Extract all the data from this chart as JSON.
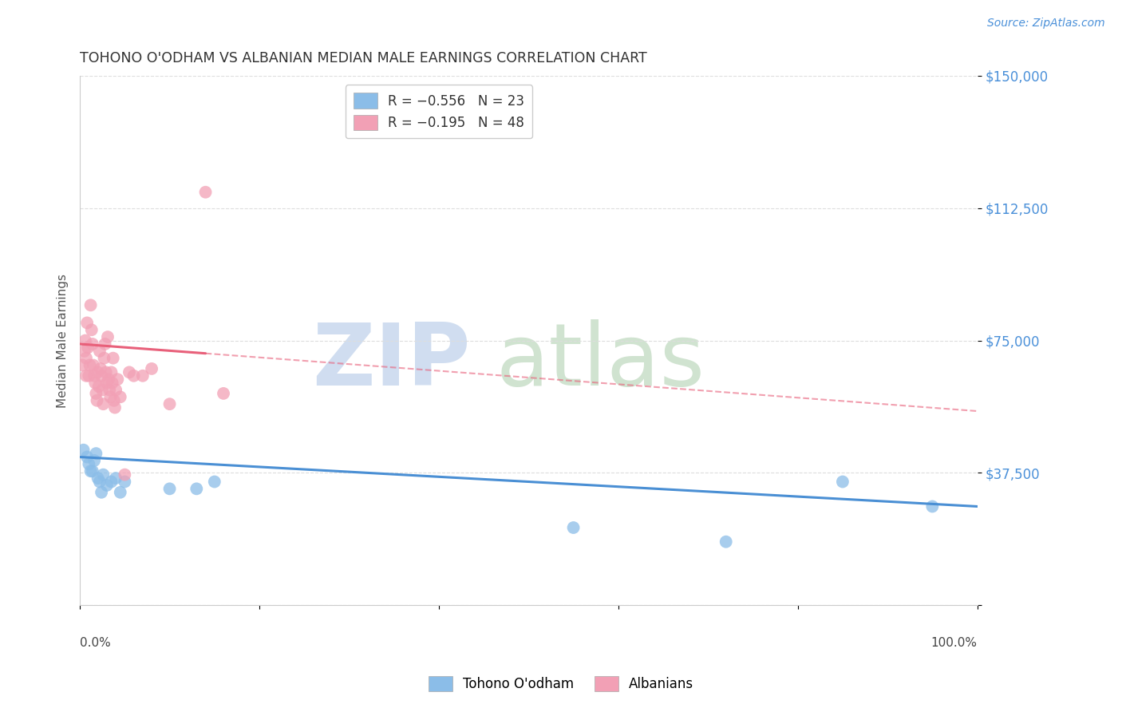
{
  "title": "TOHONO O'ODHAM VS ALBANIAN MEDIAN MALE EARNINGS CORRELATION CHART",
  "source": "Source: ZipAtlas.com",
  "ylabel": "Median Male Earnings",
  "y_ticks": [
    0,
    37500,
    75000,
    112500,
    150000
  ],
  "y_tick_labels": [
    "",
    "$37,500",
    "$75,000",
    "$112,500",
    "$150,000"
  ],
  "x_range": [
    0,
    100
  ],
  "y_range": [
    0,
    150000
  ],
  "blue_color": "#8BBDE8",
  "pink_color": "#F2A0B5",
  "blue_line_color": "#4A8FD4",
  "pink_line_color": "#E8607A",
  "tohono_x": [
    0.4,
    0.8,
    1.0,
    1.2,
    1.4,
    1.6,
    1.8,
    2.0,
    2.2,
    2.4,
    2.6,
    3.0,
    3.5,
    4.0,
    4.5,
    5.0,
    10.0,
    13.0,
    15.0,
    55.0,
    72.0,
    85.0,
    95.0
  ],
  "tohono_y": [
    44000,
    42000,
    40000,
    38000,
    38000,
    41000,
    43000,
    36000,
    35000,
    32000,
    37000,
    34000,
    35000,
    36000,
    32000,
    35000,
    33000,
    33000,
    35000,
    22000,
    18000,
    35000,
    28000
  ],
  "albanian_x": [
    0.3,
    0.5,
    0.6,
    0.7,
    0.7,
    0.8,
    0.9,
    1.0,
    1.1,
    1.2,
    1.3,
    1.4,
    1.5,
    1.6,
    1.7,
    1.8,
    1.9,
    2.0,
    2.1,
    2.2,
    2.3,
    2.4,
    2.5,
    2.6,
    2.7,
    2.8,
    2.9,
    3.0,
    3.1,
    3.2,
    3.3,
    3.4,
    3.5,
    3.6,
    3.7,
    3.8,
    3.9,
    4.0,
    4.2,
    4.5,
    5.0,
    5.5,
    6.0,
    7.0,
    8.0,
    10.0,
    14.0,
    16.0
  ],
  "albanian_y": [
    68000,
    72000,
    75000,
    65000,
    70000,
    80000,
    73000,
    65000,
    68000,
    85000,
    78000,
    74000,
    68000,
    65000,
    63000,
    60000,
    58000,
    66000,
    62000,
    72000,
    67000,
    65000,
    61000,
    57000,
    70000,
    74000,
    66000,
    63000,
    76000,
    64000,
    61000,
    59000,
    66000,
    63000,
    70000,
    58000,
    56000,
    61000,
    64000,
    59000,
    37000,
    66000,
    65000,
    65000,
    67000,
    57000,
    117000,
    60000
  ],
  "pink_solid_end_x": 14.0,
  "watermark_zip_color": "#C8D8EE",
  "watermark_atlas_color": "#C8DEC8"
}
